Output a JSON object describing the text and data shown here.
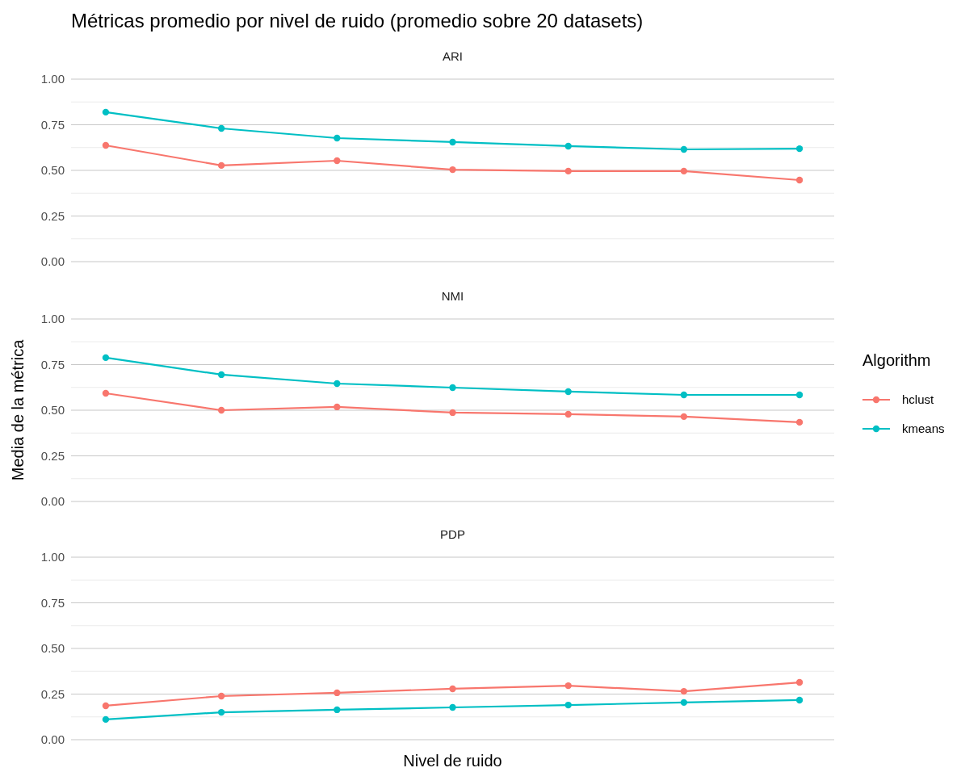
{
  "chart_data": [
    {
      "type": "line",
      "title": "Métricas promedio por nivel de ruido (promedio sobre 20 datasets)",
      "subtitle": "ARI",
      "categories": [
        null,
        null,
        null,
        null,
        null,
        null,
        null
      ],
      "ylim": [
        0,
        1
      ],
      "yticks": [
        {
          "value": 0,
          "label": "0.00"
        },
        {
          "value": 0.25,
          "label": "0.25"
        },
        {
          "value": 0.5,
          "label": "0.50"
        },
        {
          "value": 0.75,
          "label": "0.75"
        },
        {
          "value": 1,
          "label": "1.00"
        }
      ],
      "grid": "y",
      "marker": "circle",
      "legend": false,
      "series": [
        {
          "color": "#f8766d",
          "values": [
            0.637,
            0.527,
            0.553,
            0.504,
            0.496,
            0.496,
            0.447
          ]
        },
        {
          "color": "#00bfc4",
          "values": [
            0.819,
            0.73,
            0.677,
            0.655,
            0.633,
            0.615,
            0.619
          ]
        }
      ]
    },
    {
      "type": "line",
      "subtitle": "NMI",
      "ylabel": "Media de la métrica",
      "legend_title": "Algorithm",
      "categories": [
        null,
        null,
        null,
        null,
        null,
        null,
        null
      ],
      "ylim": [
        0,
        1
      ],
      "yticks": [
        {
          "value": 0,
          "label": "0.00"
        },
        {
          "value": 0.25,
          "label": "0.25"
        },
        {
          "value": 0.5,
          "label": "0.50"
        },
        {
          "value": 0.75,
          "label": "0.75"
        },
        {
          "value": 1,
          "label": "1.00"
        }
      ],
      "grid": "y",
      "marker": "circle",
      "legend": "right",
      "series": [
        {
          "name": "hclust",
          "color": "#f8766d",
          "values": [
            0.593,
            0.5,
            0.518,
            0.487,
            0.478,
            0.465,
            0.434
          ]
        },
        {
          "name": "kmeans",
          "color": "#00bfc4",
          "values": [
            0.788,
            0.695,
            0.646,
            0.624,
            0.602,
            0.584,
            0.584
          ]
        }
      ]
    },
    {
      "type": "line",
      "subtitle": "PDP",
      "xlabel": "Nivel de ruido",
      "categories": [
        null,
        null,
        null,
        null,
        null,
        null,
        null
      ],
      "ylim": [
        0,
        1
      ],
      "yticks": [
        {
          "value": 0,
          "label": "0.00"
        },
        {
          "value": 0.25,
          "label": "0.25"
        },
        {
          "value": 0.5,
          "label": "0.50"
        },
        {
          "value": 0.75,
          "label": "0.75"
        },
        {
          "value": 1,
          "label": "1.00"
        }
      ],
      "grid": "y",
      "marker": "circle",
      "legend": false,
      "series": [
        {
          "color": "#f8766d",
          "values": [
            0.186,
            0.239,
            0.257,
            0.279,
            0.296,
            0.265,
            0.314
          ]
        },
        {
          "color": "#00bfc4",
          "values": [
            0.111,
            0.15,
            0.164,
            0.177,
            0.19,
            0.204,
            0.217
          ]
        }
      ]
    }
  ]
}
